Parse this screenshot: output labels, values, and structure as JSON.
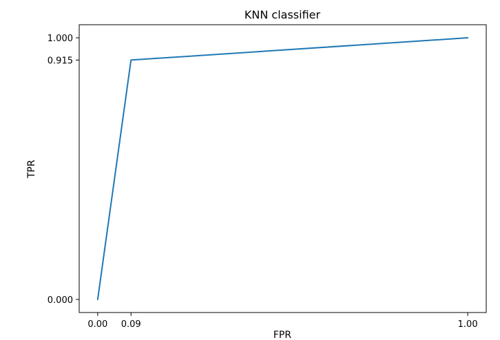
{
  "chart_data": {
    "type": "line",
    "title": "KNN classifier",
    "xlabel": "FPR",
    "ylabel": "TPR",
    "x": [
      0.0,
      0.09,
      1.0
    ],
    "series": [
      {
        "values": [
          0.0,
          0.915,
          1.0
        ],
        "color": "#1f77b4"
      }
    ],
    "xticks": [
      0.0,
      0.09,
      1.0
    ],
    "xtick_labels": [
      "0.00",
      "0.09",
      "1.00"
    ],
    "yticks": [
      0.0,
      0.915,
      1.0
    ],
    "ytick_labels": [
      "0.000",
      "0.915",
      "1.000"
    ],
    "xlim": [
      -0.05,
      1.05
    ],
    "ylim": [
      -0.05,
      1.05
    ],
    "grid": false
  }
}
